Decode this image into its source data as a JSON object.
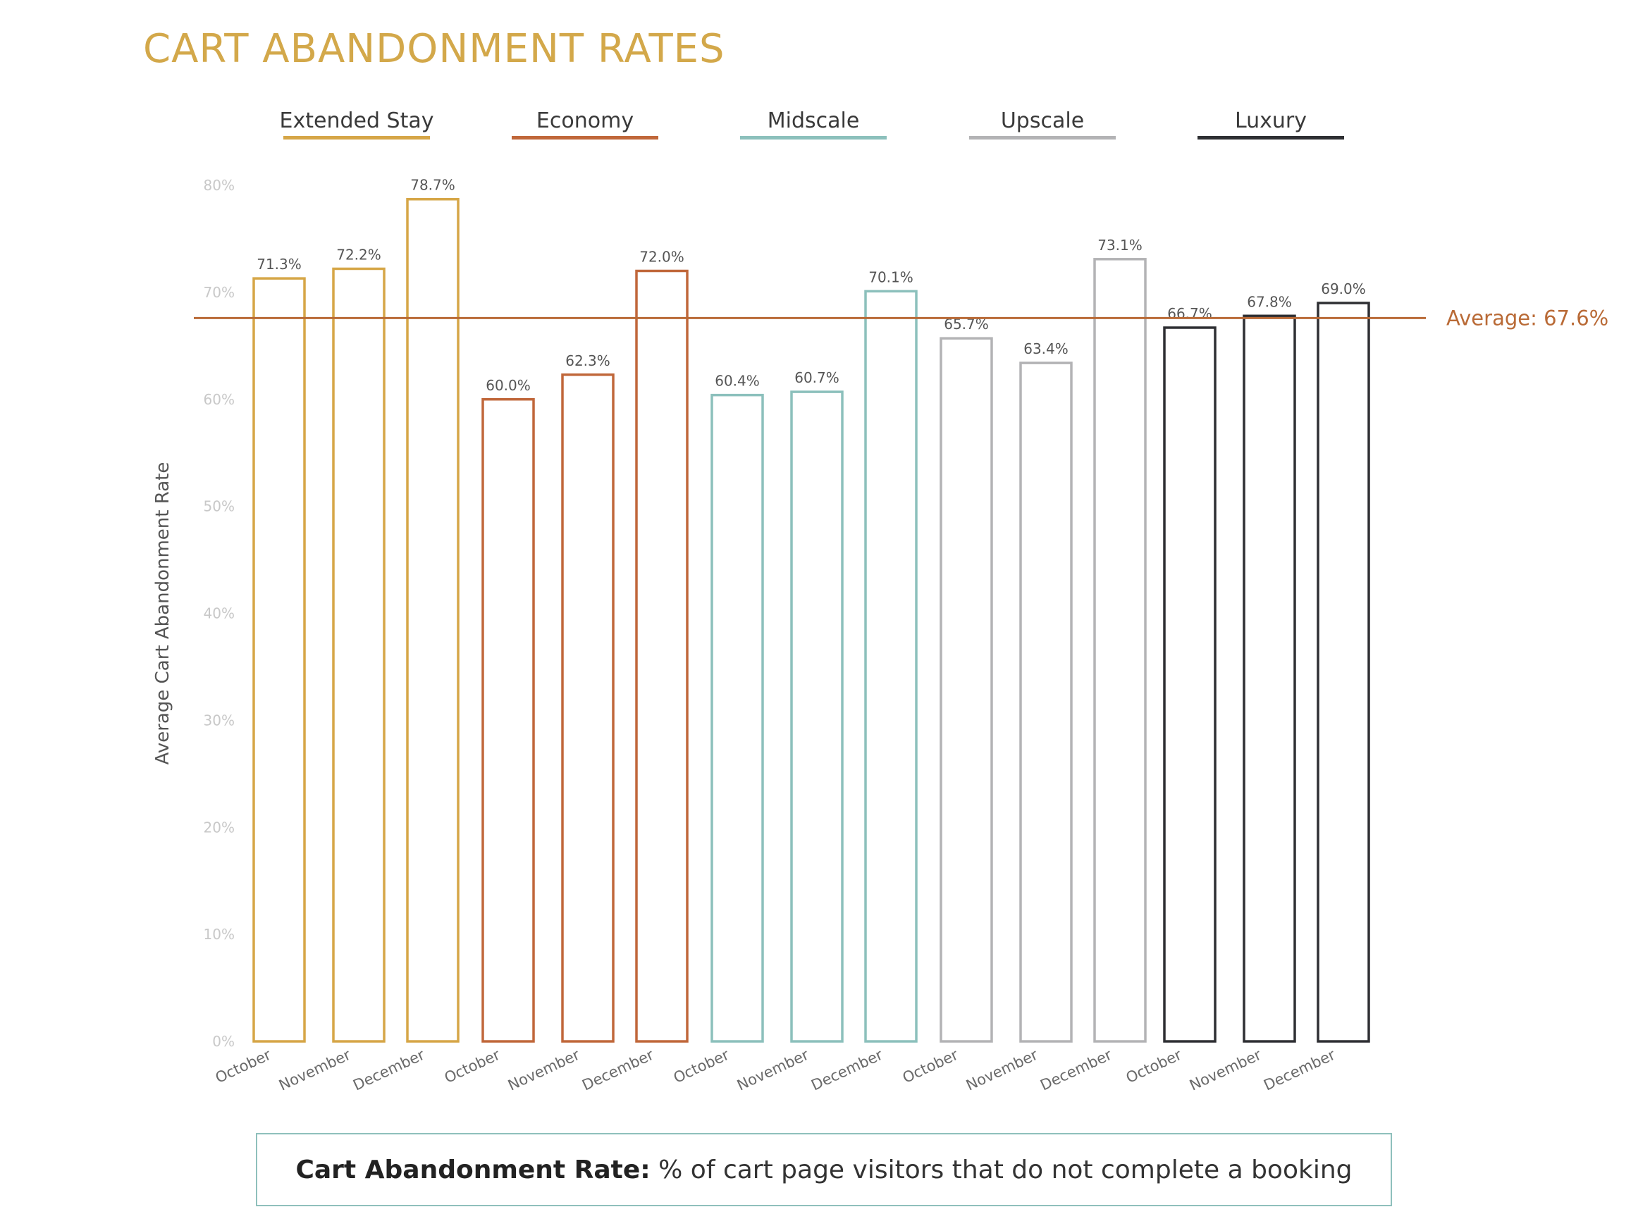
{
  "title": "CART ABANDONMENT RATES",
  "colors": {
    "title": "#d3a84a",
    "average_line": "#b96a36",
    "grid_tick": "#c8c8c8"
  },
  "definition": {
    "term": "Cart Abandonment Rate:",
    "text": " % of cart page visitors that do not complete a booking"
  },
  "chart_data": {
    "type": "bar",
    "title": "CART ABANDONMENT RATES",
    "xlabel": "",
    "ylabel": "Average Cart Abandonment Rate",
    "ylim": [
      0,
      80
    ],
    "y_ticks": [
      "0%",
      "10%",
      "20%",
      "30%",
      "40%",
      "50%",
      "60%",
      "70%",
      "80%"
    ],
    "y_tick_values": [
      0,
      10,
      20,
      30,
      40,
      50,
      60,
      70,
      80
    ],
    "grid": false,
    "legend": "top",
    "categories": [
      "October",
      "November",
      "December"
    ],
    "series": [
      {
        "name": "Extended Stay",
        "color": "#d6a647",
        "values": [
          71.3,
          72.2,
          78.7
        ],
        "labels": [
          "71.3%",
          "72.2%",
          "78.7%"
        ]
      },
      {
        "name": "Economy",
        "color": "#c0673a",
        "values": [
          60.0,
          62.3,
          72.0
        ],
        "labels": [
          "60.0%",
          "62.3%",
          "72.0%"
        ]
      },
      {
        "name": "Midscale",
        "color": "#8cc0bc",
        "values": [
          60.4,
          60.7,
          70.1
        ],
        "labels": [
          "60.4%",
          "60.7%",
          "70.1%"
        ]
      },
      {
        "name": "Upscale",
        "color": "#b3b3b5",
        "values": [
          65.7,
          63.4,
          73.1
        ],
        "labels": [
          "65.7%",
          "63.4%",
          "73.1%"
        ]
      },
      {
        "name": "Luxury",
        "color": "#2e2f33",
        "values": [
          66.7,
          67.8,
          69.0
        ],
        "labels": [
          "66.7%",
          "67.8%",
          "69.0%"
        ]
      }
    ],
    "average": {
      "value": 67.6,
      "label": "Average: 67.6%"
    }
  }
}
